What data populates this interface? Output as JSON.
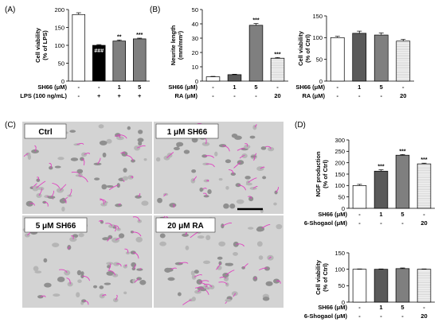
{
  "panel_labels": {
    "a": "(A)",
    "b": "(B)",
    "c": "(C)",
    "d": "(D)"
  },
  "micrograph_labels": [
    "Ctrl",
    "1 μM SH66",
    "5 μM SH66",
    "20 μM RA"
  ],
  "colors": {
    "white": "#ffffff",
    "black": "#000000",
    "dark_gray": "#5a5a5a",
    "mid_gray": "#7f7f7f",
    "hatched": "#f2f2f2",
    "neurite": "#e040c0",
    "cell_bg": "#d3d3d3"
  },
  "chart_data": [
    {
      "id": "A",
      "type": "bar",
      "ylabel": "Cell viability\n(% of LPS)",
      "ylim": [
        0,
        200
      ],
      "yticks": [
        0,
        50,
        100,
        150,
        200
      ],
      "values": [
        186,
        100,
        112,
        118
      ],
      "errors": [
        5,
        2,
        3,
        2
      ],
      "fills": [
        "white",
        "black",
        "mid_gray",
        "mid_gray"
      ],
      "significance": [
        "",
        "###",
        "**",
        "***"
      ],
      "conditions": [
        {
          "label": "SH66 (μM)",
          "values": [
            "-",
            "-",
            "1",
            "5"
          ]
        },
        {
          "label": "LPS (100 ng/mL)",
          "values": [
            "-",
            "+",
            "+",
            "+"
          ]
        }
      ]
    },
    {
      "id": "B1",
      "type": "bar",
      "ylabel": "Neurite length\n(mm/mm²)",
      "ylim": [
        0,
        50
      ],
      "yticks": [
        0,
        10,
        20,
        30,
        40,
        50
      ],
      "values": [
        3,
        4.5,
        39,
        16
      ],
      "errors": [
        0.3,
        0.3,
        1.2,
        0.5
      ],
      "fills": [
        "white",
        "dark_gray",
        "mid_gray",
        "hatched"
      ],
      "significance": [
        "",
        "",
        "***",
        "***"
      ],
      "conditions": [
        {
          "label": "SH66 (μM)",
          "values": [
            "-",
            "1",
            "5",
            "-"
          ]
        },
        {
          "label": "RA (μM)",
          "values": [
            "-",
            "-",
            "-",
            "20"
          ]
        }
      ]
    },
    {
      "id": "B2",
      "type": "bar",
      "ylabel": "Cell viability\n(% of Ctrl)",
      "ylim": [
        0,
        150
      ],
      "yticks": [
        0,
        50,
        100,
        150
      ],
      "values": [
        100,
        110,
        106,
        92
      ],
      "errors": [
        3,
        5,
        5,
        4
      ],
      "fills": [
        "white",
        "dark_gray",
        "mid_gray",
        "hatched"
      ],
      "significance": [
        "",
        "",
        "",
        ""
      ],
      "conditions": [
        {
          "label": "SH66 (μM)",
          "values": [
            "-",
            "1",
            "5",
            "-"
          ]
        },
        {
          "label": "RA (μM)",
          "values": [
            "-",
            "-",
            "-",
            "20"
          ]
        }
      ]
    },
    {
      "id": "D1",
      "type": "bar",
      "ylabel": "NGF production\n(% of Ctrl)",
      "ylim": [
        0,
        300
      ],
      "yticks": [
        0,
        50,
        100,
        150,
        200,
        250,
        300
      ],
      "values": [
        100,
        163,
        233,
        195
      ],
      "errors": [
        5,
        6,
        3,
        3
      ],
      "fills": [
        "white",
        "dark_gray",
        "mid_gray",
        "hatched"
      ],
      "significance": [
        "",
        "***",
        "***",
        "***"
      ],
      "conditions": [
        {
          "label": "SH66 (μM)",
          "values": [
            "-",
            "1",
            "5",
            "-"
          ]
        },
        {
          "label": "6-Shogaol (μM)",
          "values": [
            "-",
            "-",
            "-",
            "20"
          ]
        }
      ]
    },
    {
      "id": "D2",
      "type": "bar",
      "ylabel": "Cell viability\n(% of Ctrl)",
      "ylim": [
        0,
        150
      ],
      "yticks": [
        0,
        50,
        100,
        150
      ],
      "values": [
        100,
        100,
        102,
        100
      ],
      "errors": [
        1,
        1,
        2,
        1
      ],
      "fills": [
        "white",
        "dark_gray",
        "mid_gray",
        "hatched"
      ],
      "significance": [
        "",
        "",
        "",
        ""
      ],
      "conditions": [
        {
          "label": "SH66 (μM)",
          "values": [
            "-",
            "1",
            "5",
            "-"
          ]
        },
        {
          "label": "6-Shogaol (μM)",
          "values": [
            "-",
            "-",
            "-",
            "20"
          ]
        }
      ]
    }
  ]
}
